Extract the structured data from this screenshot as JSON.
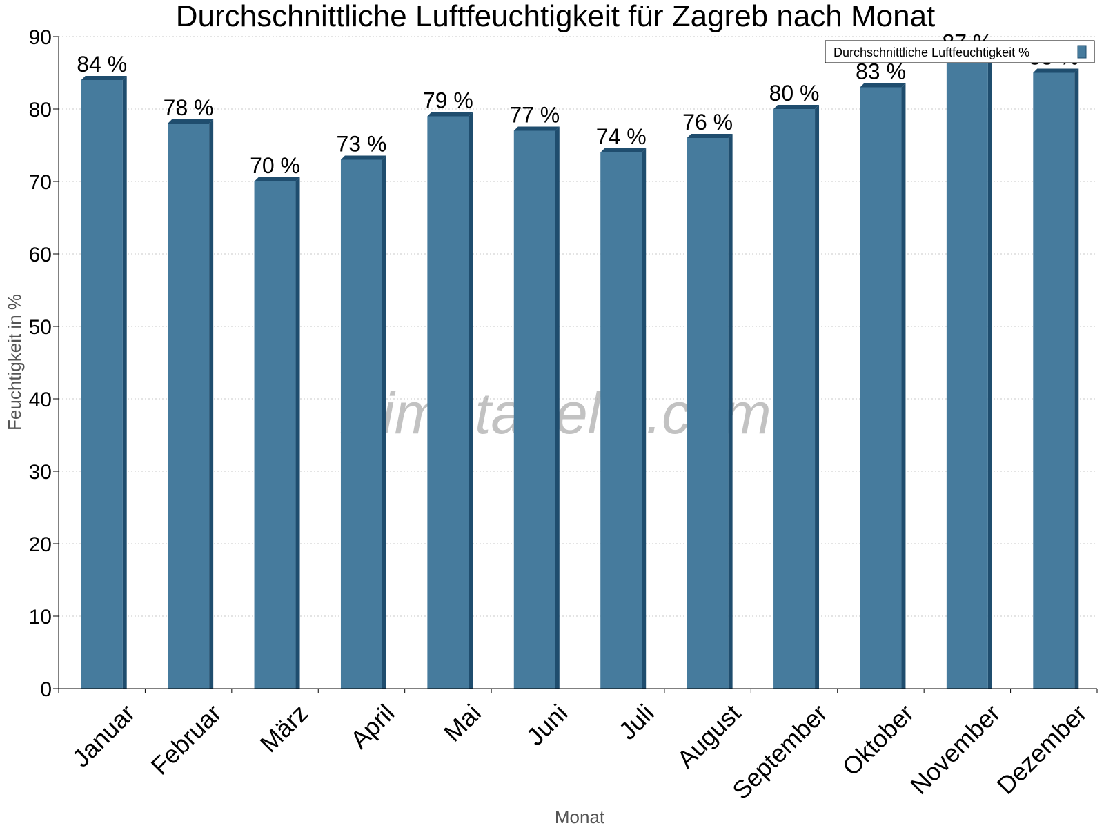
{
  "chart_data": {
    "type": "bar",
    "title": "Durchschnittliche Luftfeuchtigkeit für Zagreb nach Monat",
    "xlabel": "Monat",
    "ylabel": "Feuchtigkeit in %",
    "ylim": [
      0,
      90
    ],
    "yticks": [
      0,
      10,
      20,
      30,
      40,
      50,
      60,
      70,
      80,
      90
    ],
    "grid": true,
    "legend_position": "top-right",
    "categories": [
      "Januar",
      "Februar",
      "März",
      "April",
      "Mai",
      "Juni",
      "Juli",
      "August",
      "September",
      "Oktober",
      "November",
      "Dezember"
    ],
    "series": [
      {
        "name": "Durchschnittliche Luftfeuchtigkeit %",
        "values": [
          84,
          78,
          70,
          73,
          79,
          77,
          74,
          76,
          80,
          83,
          87,
          85
        ],
        "data_labels": [
          "84 %",
          "78 %",
          "70 %",
          "73 %",
          "79 %",
          "77 %",
          "74 %",
          "76 %",
          "80 %",
          "83 %",
          "87 %",
          "85 %"
        ],
        "color": "#467b9d",
        "edge_color": "#1f4d6e"
      }
    ],
    "watermark": "klimatabelle.com"
  }
}
